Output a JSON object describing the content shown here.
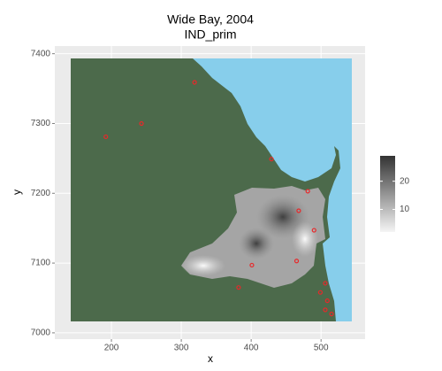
{
  "chart_data": {
    "type": "raster",
    "title": "Wide Bay, 2004",
    "subtitle": "IND_prim",
    "x_label": "x",
    "y_label": "y",
    "xlim": [
      119,
      563
    ],
    "ylim": [
      6991,
      7411
    ],
    "xticks": [
      200,
      300,
      400,
      500
    ],
    "yticks": [
      7000,
      7100,
      7200,
      7300,
      7400
    ],
    "grid": true,
    "land_color": "#4c6a4b",
    "sea_color": "#87ceeb",
    "points": {
      "color": "#e8282a",
      "x": [
        319,
        429,
        481,
        468,
        465,
        506,
        509,
        506,
        192,
        243,
        382,
        401,
        490,
        499,
        515
      ],
      "y": [
        7359,
        7249,
        7203,
        7175,
        7103,
        7071,
        7046,
        7033,
        7281,
        7300,
        7065,
        7097,
        7147,
        7058,
        7027
      ]
    },
    "colorbar": {
      "lim": [
        2,
        29
      ],
      "ticks": [
        10,
        20
      ],
      "low_color": "#f5f5f5",
      "high_color": "#333333"
    }
  }
}
